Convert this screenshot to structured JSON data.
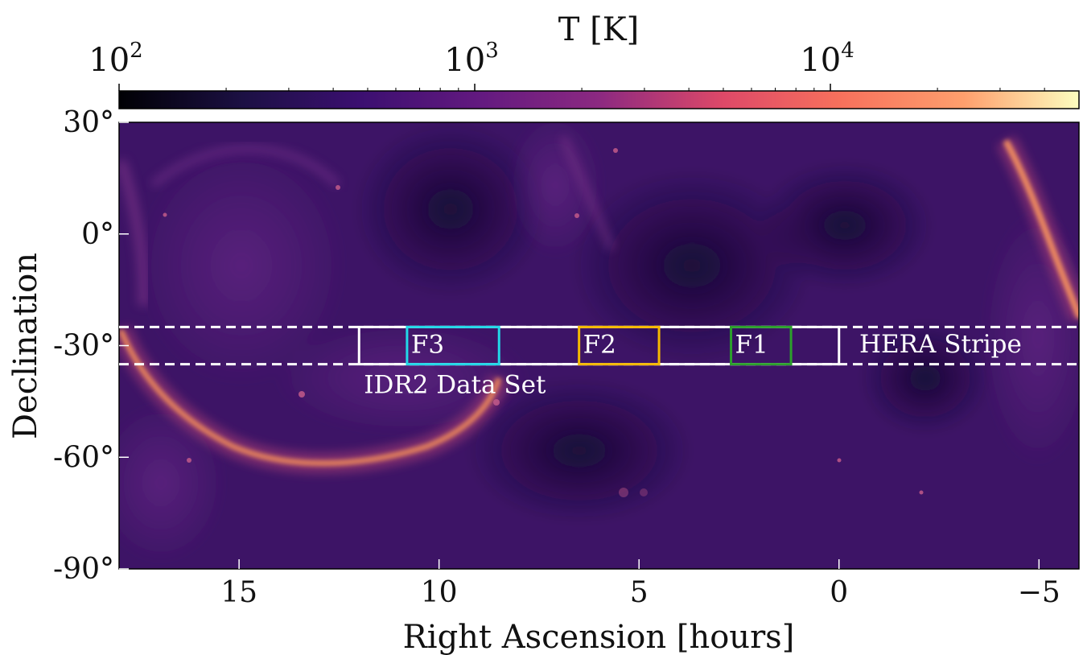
{
  "chart_data": {
    "type": "heatmap",
    "title": "",
    "xlabel": "Right Ascension [hours]",
    "ylabel": "Declination",
    "xlim": [
      18,
      -6
    ],
    "ylim": [
      -90,
      30
    ],
    "xticks": [
      {
        "value": 15,
        "label": "15"
      },
      {
        "value": 10,
        "label": "10"
      },
      {
        "value": 5,
        "label": "5"
      },
      {
        "value": 0,
        "label": "0"
      },
      {
        "value": -5,
        "label": "−5"
      }
    ],
    "yticks": [
      {
        "value": 30,
        "label": "30°"
      },
      {
        "value": 0,
        "label": "0°"
      },
      {
        "value": -30,
        "label": "-30°"
      },
      {
        "value": -60,
        "label": "-60°"
      },
      {
        "value": -90,
        "label": "-90°"
      }
    ],
    "colorbar": {
      "label": "T [K]",
      "scale": "log",
      "colormap": "magma",
      "range": [
        100,
        50000
      ],
      "ticks": [
        {
          "value": 100,
          "base": "10",
          "exp": "2"
        },
        {
          "value": 1000,
          "base": "10",
          "exp": "3"
        },
        {
          "value": 10000,
          "base": "10",
          "exp": "4"
        }
      ]
    },
    "stripe": {
      "label": "HERA Stripe",
      "dec_range": [
        -35,
        -25
      ],
      "color": "#ffffff"
    },
    "dataset_box": {
      "label": "IDR2 Data Set",
      "ra_range": [
        12,
        0
      ],
      "dec_range": [
        -35,
        -25
      ],
      "color": "#ffffff"
    },
    "fields": [
      {
        "name": "F3",
        "label": "F3",
        "ra_range": [
          10.8,
          8.5
        ],
        "dec_range": [
          -35,
          -25
        ],
        "color": "#22d8e8"
      },
      {
        "name": "F2",
        "label": "F2",
        "ra_range": [
          6.5,
          4.5
        ],
        "dec_range": [
          -35,
          -25
        ],
        "color": "#f5b900"
      },
      {
        "name": "F1",
        "label": "F1",
        "ra_range": [
          2.7,
          1.2
        ],
        "dec_range": [
          -35,
          -25
        ],
        "color": "#2ca02c"
      }
    ],
    "colors": {
      "background_sky": "#3d1466",
      "galactic_plane": "#f08a5a"
    }
  }
}
